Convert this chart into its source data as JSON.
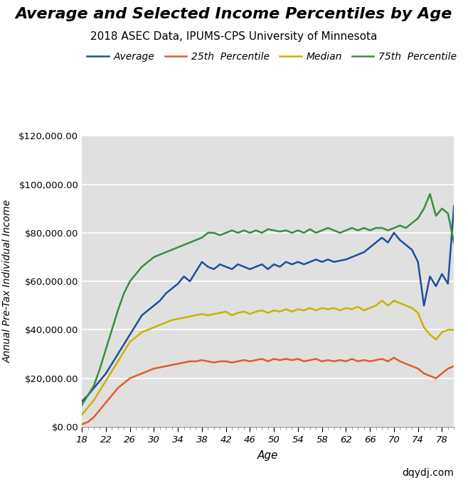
{
  "title": "Average and Selected Income Percentiles by Age",
  "subtitle": "2018 ASEC Data, IPUMS-CPS University of Minnesota",
  "xlabel": "Age",
  "ylabel": "Annual Pre-Tax Individual Income",
  "watermark": "dqydj.com",
  "background_color": "#e0e0e0",
  "legend_labels": [
    "Average",
    "25th  Percentile",
    "Median",
    "75th  Percentile"
  ],
  "legend_colors": [
    "#1f4e9c",
    "#e05c2a",
    "#c8b400",
    "#3a8c3f"
  ],
  "ages": [
    18,
    19,
    20,
    21,
    22,
    23,
    24,
    25,
    26,
    27,
    28,
    29,
    30,
    31,
    32,
    33,
    34,
    35,
    36,
    37,
    38,
    39,
    40,
    41,
    42,
    43,
    44,
    45,
    46,
    47,
    48,
    49,
    50,
    51,
    52,
    53,
    54,
    55,
    56,
    57,
    58,
    59,
    60,
    61,
    62,
    63,
    64,
    65,
    66,
    67,
    68,
    69,
    70,
    71,
    72,
    73,
    74,
    75,
    76,
    77,
    78,
    79,
    80
  ],
  "average": [
    10500,
    13000,
    16000,
    19000,
    22000,
    26000,
    30000,
    34000,
    38000,
    42000,
    46000,
    48000,
    50000,
    52000,
    55000,
    57000,
    59000,
    62000,
    60000,
    64000,
    68000,
    66000,
    65000,
    67000,
    66000,
    65000,
    67000,
    66000,
    65000,
    66000,
    67000,
    65000,
    67000,
    66000,
    68000,
    67000,
    68000,
    67000,
    68000,
    69000,
    68000,
    69000,
    68000,
    68500,
    69000,
    70000,
    71000,
    72000,
    74000,
    76000,
    78000,
    76000,
    80000,
    77000,
    75000,
    73000,
    68000,
    50000,
    62000,
    58000,
    63000,
    59000,
    91000
  ],
  "p25": [
    1000,
    2000,
    4000,
    7000,
    10000,
    13000,
    16000,
    18000,
    20000,
    21000,
    22000,
    23000,
    24000,
    24500,
    25000,
    25500,
    26000,
    26500,
    27000,
    27000,
    27500,
    27000,
    26500,
    27000,
    27000,
    26500,
    27000,
    27500,
    27000,
    27500,
    28000,
    27000,
    28000,
    27500,
    28000,
    27500,
    28000,
    27000,
    27500,
    28000,
    27000,
    27500,
    27000,
    27500,
    27000,
    28000,
    27000,
    27500,
    27000,
    27500,
    28000,
    27000,
    28500,
    27000,
    26000,
    25000,
    24000,
    22000,
    21000,
    20000,
    22000,
    24000,
    25000
  ],
  "median": [
    5000,
    8000,
    11000,
    15000,
    19000,
    23000,
    27000,
    31000,
    35000,
    37000,
    39000,
    40000,
    41000,
    42000,
    43000,
    44000,
    44500,
    45000,
    45500,
    46000,
    46500,
    46000,
    46500,
    47000,
    47500,
    46000,
    47000,
    47500,
    46500,
    47500,
    48000,
    47000,
    48000,
    47500,
    48500,
    47500,
    48500,
    48000,
    49000,
    48000,
    49000,
    48500,
    49000,
    48000,
    49000,
    48500,
    49500,
    48000,
    49000,
    50000,
    52000,
    50000,
    52000,
    51000,
    50000,
    49000,
    47000,
    41000,
    38000,
    36000,
    39000,
    40000,
    40000
  ],
  "p75": [
    9000,
    13000,
    17000,
    24000,
    32000,
    40000,
    48000,
    55000,
    60000,
    63000,
    66000,
    68000,
    70000,
    71000,
    72000,
    73000,
    74000,
    75000,
    76000,
    77000,
    78000,
    80000,
    80000,
    79000,
    80000,
    81000,
    80000,
    81000,
    80000,
    81000,
    80000,
    81500,
    81000,
    80500,
    81000,
    80000,
    81000,
    80000,
    81500,
    80000,
    81000,
    82000,
    81000,
    80000,
    81000,
    82000,
    81000,
    82000,
    81000,
    82000,
    82000,
    81000,
    82000,
    83000,
    82000,
    84000,
    86000,
    90000,
    96000,
    87000,
    90000,
    88000,
    76000
  ],
  "ylim": [
    0,
    120000
  ],
  "xlim": [
    18,
    80
  ],
  "xticks": [
    18,
    22,
    26,
    30,
    34,
    38,
    42,
    46,
    50,
    54,
    58,
    62,
    66,
    70,
    74,
    78
  ],
  "yticks": [
    0,
    20000,
    40000,
    60000,
    80000,
    100000,
    120000
  ],
  "title_fontsize": 16,
  "subtitle_fontsize": 11,
  "legend_fontsize": 10,
  "tick_fontsize": 9.5,
  "ylabel_fontsize": 10,
  "xlabel_fontsize": 11
}
